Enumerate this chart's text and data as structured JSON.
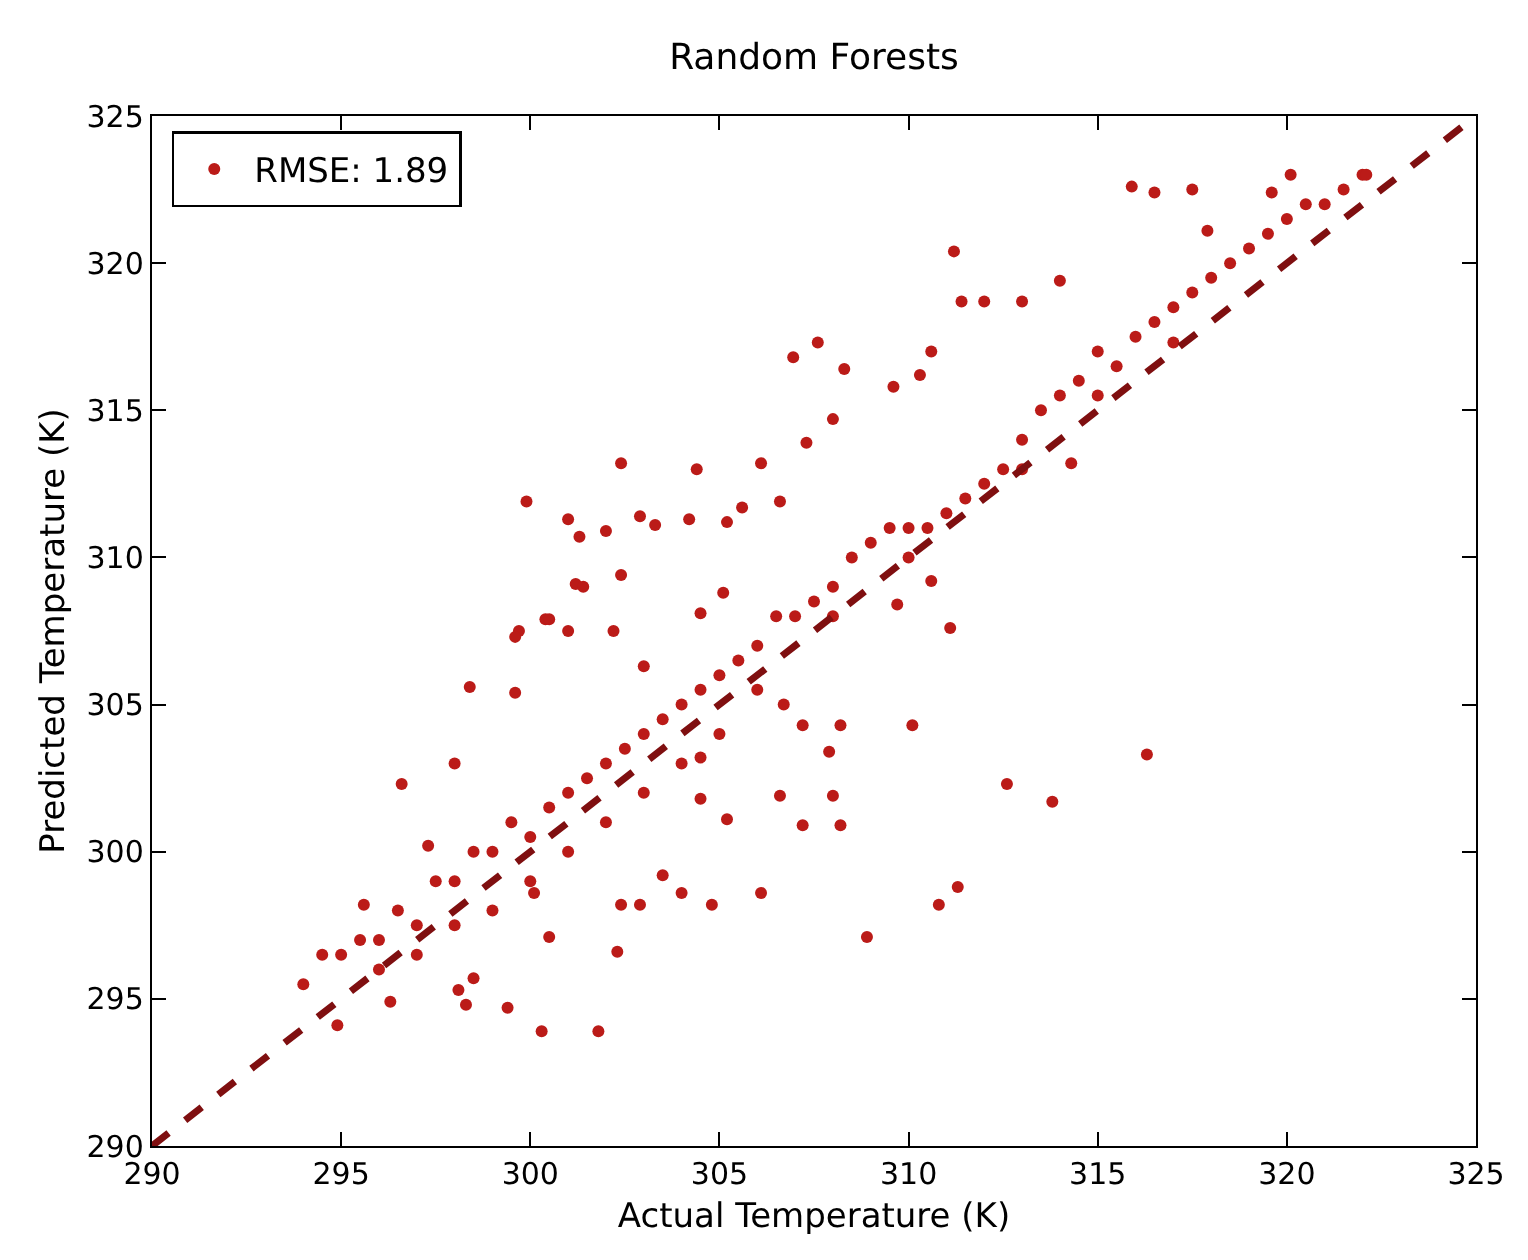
{
  "chart_data": {
    "type": "scatter",
    "title": "Random Forests",
    "xlabel": "Actual Temperature (K)",
    "ylabel": "Predicted Temperature (K)",
    "xlim": [
      290,
      325
    ],
    "ylim": [
      290,
      325
    ],
    "xticks": [
      290,
      295,
      300,
      305,
      310,
      315,
      320,
      325
    ],
    "yticks": [
      290,
      295,
      300,
      305,
      310,
      315,
      320,
      325
    ],
    "legend": "top left",
    "series": [
      {
        "name": "RMSE: 1.89",
        "marker": "circle",
        "color": "#bb1b18",
        "x": [
          294.0,
          294.5,
          295,
          295.5,
          296,
          296.5,
          297,
          297.5,
          298,
          298.5,
          299,
          299.5,
          300,
          300.5,
          301,
          301.5,
          302,
          302.5,
          303,
          303.5,
          304,
          304.5,
          305,
          305.5,
          306,
          306.5,
          307,
          307.5,
          308,
          308.5,
          309,
          309.5,
          310,
          310.5,
          311,
          311.5,
          312,
          312.5,
          313,
          313.5,
          314,
          314.5,
          315,
          315.5,
          316,
          316.5,
          317,
          317.5,
          318,
          318.5,
          319,
          319.5,
          320,
          320.5,
          321,
          321.5,
          322,
          296,
          297,
          298,
          299,
          300,
          301,
          302,
          303,
          304,
          305,
          306,
          308,
          310,
          313,
          315,
          317,
          306.95,
          307.6,
          302.4,
          299.9,
          304.4,
          306.1,
          307.3,
          301.0,
          301.3,
          302.0,
          302.9,
          303.3,
          304.2,
          305.2,
          305.6,
          306.6,
          302.4,
          301.2,
          301.4,
          300.4,
          299.7,
          305.1,
          300.5,
          299.6,
          301.0,
          298.4,
          299.6,
          296.6,
          295.6,
          294.9,
          296.3,
          298.3,
          299.4,
          300.3,
          301.8,
          302.3,
          300.5,
          298.1,
          298.5,
          304.8,
          306.1,
          306.6,
          307.2,
          304.5,
          305.2,
          303.5,
          304.0,
          302.9,
          302.4,
          300.1,
          306.7,
          307.2,
          304.5,
          303.0,
          302.2,
          304.5,
          298.0,
          297.3,
          315.9,
          316.5,
          317.5,
          311.2,
          311.4,
          312.0,
          313.0,
          314.0,
          308.3,
          310.6,
          310.3,
          309.6,
          308.0,
          314.3,
          310.6,
          311.1,
          309.7,
          320.1,
          322.1,
          319.6,
          317.9,
          308.2,
          310.1,
          307.9,
          308.0,
          308.2,
          312.6,
          313.8,
          316.3,
          311.3,
          310.8,
          308.9
        ],
        "values": [
          295.5,
          296.5,
          296.5,
          297,
          297,
          298,
          297.5,
          299,
          299,
          300,
          300,
          301,
          300.5,
          301.5,
          302,
          302.5,
          303,
          303.5,
          304,
          304.5,
          305,
          305.5,
          306,
          306.5,
          307,
          308,
          308,
          308.5,
          309,
          310,
          310.5,
          311,
          311,
          311,
          311.5,
          312,
          312.5,
          313,
          314,
          315,
          315.5,
          316,
          317,
          316.5,
          317.5,
          318,
          318.5,
          319,
          319.5,
          320,
          320.5,
          321,
          321.5,
          322,
          322,
          322.5,
          323,
          296,
          296.5,
          297.5,
          298,
          299,
          300,
          301,
          302,
          303,
          304,
          305.5,
          308,
          310,
          313,
          315.5,
          317.3,
          316.8,
          317.3,
          313.2,
          311.9,
          313.0,
          313.2,
          313.9,
          311.3,
          310.7,
          310.9,
          311.4,
          311.1,
          311.3,
          311.2,
          311.7,
          311.9,
          309.4,
          309.1,
          309.0,
          307.9,
          307.5,
          308.8,
          307.9,
          307.3,
          307.5,
          305.6,
          305.4,
          302.3,
          298.2,
          294.1,
          294.9,
          294.8,
          294.7,
          293.9,
          293.9,
          296.6,
          297.1,
          295.3,
          295.7,
          298.2,
          298.6,
          301.9,
          300.9,
          301.8,
          301.1,
          299.2,
          298.6,
          298.2,
          298.2,
          298.6,
          305.0,
          304.3,
          303.2,
          306.3,
          307.5,
          308.1,
          303.0,
          300.2,
          322.6,
          322.4,
          322.5,
          320.4,
          318.7,
          318.7,
          318.7,
          319.4,
          316.4,
          317.0,
          316.2,
          315.8,
          314.7,
          313.2,
          309.2,
          307.6,
          308.4,
          323.0,
          323.0,
          322.4,
          321.1,
          304.3,
          304.3,
          303.4,
          301.9,
          300.9,
          302.3,
          301.7,
          303.3,
          298.8,
          298.2,
          297.1
        ]
      },
      {
        "type": "line",
        "marker": "none",
        "line_style": "dashed",
        "color": "#7f0f10",
        "x": [
          290,
          325
        ],
        "values": [
          290,
          325
        ]
      }
    ]
  }
}
